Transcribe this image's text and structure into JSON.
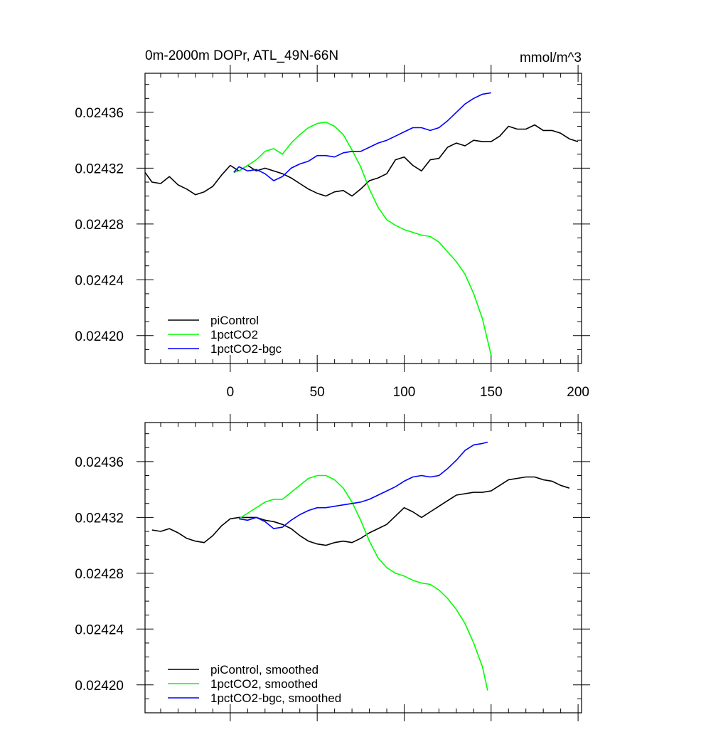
{
  "chart_data": [
    {
      "type": "line",
      "title": "0m-2000m DOPr, ATL_49N-66N",
      "units": "mmol/m^3",
      "xlim": [
        -49,
        202
      ],
      "ylim": [
        0.02418,
        0.024388
      ],
      "xticks": [
        0,
        50,
        100,
        150,
        200
      ],
      "xtick_labels": [
        "0",
        "50",
        "100",
        "150",
        "200"
      ],
      "yticks": [
        0.0242,
        0.02424,
        0.02428,
        0.02432,
        0.02436
      ],
      "ytick_labels": [
        "0.02420",
        "0.02424",
        "0.02428",
        "0.02432",
        "0.02436"
      ],
      "grid": false,
      "legend_position": "bottom-left",
      "series": [
        {
          "name": "piControl",
          "color": "#000000",
          "x": [
            -49,
            -45,
            -40,
            -35,
            -30,
            -25,
            -20,
            -15,
            -10,
            -5,
            0,
            5,
            10,
            15,
            20,
            25,
            30,
            35,
            40,
            45,
            50,
            55,
            60,
            65,
            70,
            75,
            80,
            85,
            90,
            95,
            100,
            105,
            110,
            115,
            120,
            125,
            130,
            135,
            140,
            145,
            150,
            155,
            160,
            165,
            170,
            175,
            180,
            185,
            190,
            195,
            200
          ],
          "y": [
            0.024317,
            0.02431,
            0.024309,
            0.024314,
            0.024308,
            0.024305,
            0.024301,
            0.024303,
            0.024307,
            0.024315,
            0.024322,
            0.024318,
            0.024322,
            0.024318,
            0.02432,
            0.024318,
            0.024316,
            0.024313,
            0.024309,
            0.024305,
            0.024302,
            0.0243,
            0.024303,
            0.024304,
            0.0243,
            0.024305,
            0.024311,
            0.024313,
            0.024316,
            0.024326,
            0.024328,
            0.024322,
            0.024318,
            0.024326,
            0.024327,
            0.024335,
            0.024338,
            0.024336,
            0.02434,
            0.024339,
            0.024339,
            0.024343,
            0.02435,
            0.024348,
            0.024348,
            0.024351,
            0.024347,
            0.024347,
            0.024345,
            0.024341,
            0.024339
          ]
        },
        {
          "name": "1pctCO2",
          "color": "#00ff00",
          "x": [
            2,
            5,
            10,
            15,
            20,
            25,
            30,
            35,
            40,
            45,
            50,
            55,
            60,
            65,
            70,
            75,
            80,
            85,
            90,
            95,
            100,
            105,
            110,
            115,
            120,
            125,
            130,
            135,
            140,
            145,
            150
          ],
          "y": [
            0.024317,
            0.024318,
            0.024322,
            0.024326,
            0.024332,
            0.024334,
            0.02433,
            0.024338,
            0.024344,
            0.024349,
            0.024352,
            0.024353,
            0.02435,
            0.024344,
            0.024333,
            0.024321,
            0.024305,
            0.024292,
            0.024283,
            0.024279,
            0.024276,
            0.024274,
            0.024272,
            0.024271,
            0.024267,
            0.02426,
            0.024253,
            0.024244,
            0.02423,
            0.024212,
            0.024186
          ]
        },
        {
          "name": "1pctCO2-bgc",
          "color": "#0000ff",
          "x": [
            2,
            5,
            10,
            15,
            20,
            25,
            30,
            35,
            40,
            45,
            50,
            55,
            60,
            65,
            70,
            75,
            80,
            85,
            90,
            95,
            100,
            105,
            110,
            115,
            120,
            125,
            130,
            135,
            140,
            145,
            150
          ],
          "y": [
            0.024317,
            0.024321,
            0.024318,
            0.024319,
            0.024316,
            0.024311,
            0.024314,
            0.02432,
            0.024323,
            0.024325,
            0.024329,
            0.024329,
            0.024328,
            0.024331,
            0.024332,
            0.024332,
            0.024335,
            0.024338,
            0.02434,
            0.024343,
            0.024346,
            0.024349,
            0.024349,
            0.024347,
            0.024349,
            0.024354,
            0.02436,
            0.024366,
            0.02437,
            0.024373,
            0.024374
          ]
        }
      ]
    },
    {
      "type": "line",
      "title": "",
      "units": "",
      "xlim": [
        -49,
        202
      ],
      "ylim": [
        0.02418,
        0.024388
      ],
      "xticks": [
        0,
        50,
        100,
        150,
        200
      ],
      "xtick_labels": [],
      "yticks": [
        0.0242,
        0.02424,
        0.02428,
        0.02432,
        0.02436
      ],
      "ytick_labels": [
        "0.02420",
        "0.02424",
        "0.02428",
        "0.02432",
        "0.02436"
      ],
      "grid": false,
      "legend_position": "bottom-left",
      "series": [
        {
          "name": "piControl, smoothed",
          "color": "#000000",
          "x": [
            -45,
            -40,
            -35,
            -30,
            -25,
            -20,
            -15,
            -10,
            -5,
            0,
            5,
            10,
            15,
            20,
            25,
            30,
            35,
            40,
            45,
            50,
            55,
            60,
            65,
            70,
            75,
            80,
            85,
            90,
            95,
            100,
            105,
            110,
            115,
            120,
            125,
            130,
            135,
            140,
            145,
            150,
            155,
            160,
            165,
            170,
            175,
            180,
            185,
            190,
            195
          ],
          "y": [
            0.024311,
            0.02431,
            0.024312,
            0.024309,
            0.024305,
            0.024303,
            0.024302,
            0.024307,
            0.024314,
            0.024319,
            0.02432,
            0.02432,
            0.02432,
            0.024318,
            0.024317,
            0.024315,
            0.024312,
            0.024307,
            0.024303,
            0.024301,
            0.0243,
            0.024302,
            0.024303,
            0.024302,
            0.024305,
            0.024309,
            0.024312,
            0.024315,
            0.024321,
            0.024327,
            0.024324,
            0.02432,
            0.024324,
            0.024328,
            0.024332,
            0.024336,
            0.024337,
            0.024338,
            0.024338,
            0.024339,
            0.024343,
            0.024347,
            0.024348,
            0.024349,
            0.024349,
            0.024347,
            0.024346,
            0.024343,
            0.024341
          ]
        },
        {
          "name": "1pctCO2, smoothed",
          "color": "#00ff00",
          "x": [
            5,
            10,
            15,
            20,
            25,
            30,
            35,
            40,
            45,
            50,
            55,
            60,
            65,
            70,
            75,
            80,
            85,
            90,
            95,
            100,
            105,
            110,
            115,
            120,
            125,
            130,
            135,
            140,
            145,
            148
          ],
          "y": [
            0.024319,
            0.024323,
            0.024327,
            0.024331,
            0.024333,
            0.024333,
            0.024338,
            0.024343,
            0.024348,
            0.02435,
            0.02435,
            0.024347,
            0.024341,
            0.024331,
            0.024318,
            0.024303,
            0.024291,
            0.024284,
            0.02428,
            0.024278,
            0.024275,
            0.024273,
            0.024272,
            0.024268,
            0.024262,
            0.024254,
            0.024244,
            0.02423,
            0.024213,
            0.024196
          ]
        },
        {
          "name": "1pctCO2-bgc, smoothed",
          "color": "#0000ff",
          "x": [
            5,
            10,
            15,
            20,
            25,
            30,
            35,
            40,
            45,
            50,
            55,
            60,
            65,
            70,
            75,
            80,
            85,
            90,
            95,
            100,
            105,
            110,
            115,
            120,
            125,
            130,
            135,
            140,
            145,
            148
          ],
          "y": [
            0.024319,
            0.024318,
            0.02432,
            0.024317,
            0.024312,
            0.024313,
            0.024318,
            0.024322,
            0.024325,
            0.024327,
            0.024327,
            0.024328,
            0.024329,
            0.02433,
            0.024331,
            0.024333,
            0.024336,
            0.024339,
            0.024342,
            0.024346,
            0.024349,
            0.02435,
            0.024349,
            0.02435,
            0.024355,
            0.024361,
            0.024368,
            0.024372,
            0.024373,
            0.024374
          ]
        }
      ]
    }
  ]
}
